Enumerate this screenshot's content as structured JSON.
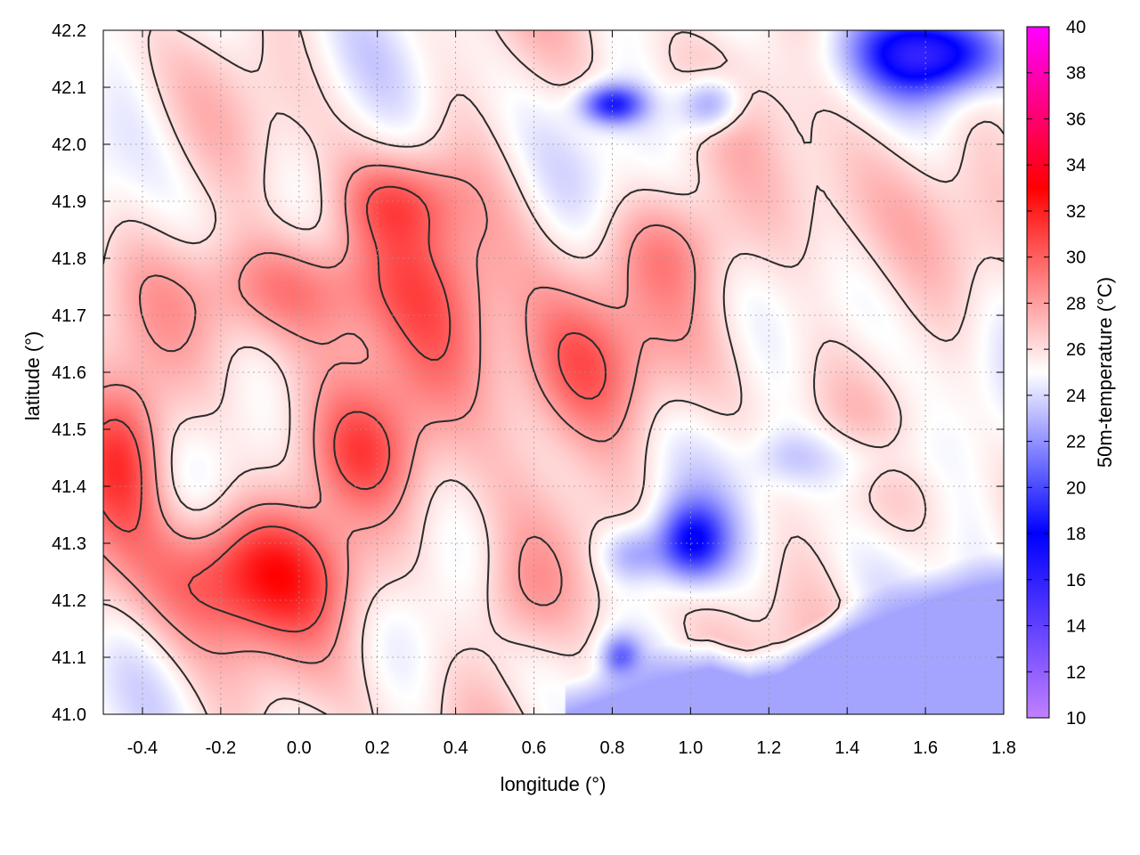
{
  "chart_data": {
    "type": "heatmap",
    "title": "",
    "xlabel": "longitude (°)",
    "ylabel": "latitude (°)",
    "colorbar_label": "50m-temperature (°C)",
    "xlim": [
      -0.5,
      1.8
    ],
    "ylim": [
      41.0,
      42.2
    ],
    "xticks": [
      -0.4,
      -0.2,
      0.0,
      0.2,
      0.4,
      0.6,
      0.8,
      1.0,
      1.2,
      1.4,
      1.6,
      1.8
    ],
    "xtick_labels": [
      "-0.4",
      "-0.2",
      "0.0",
      "0.2",
      "0.4",
      "0.6",
      "0.8",
      "1.0",
      "1.2",
      "1.4",
      "1.6",
      "1.8"
    ],
    "yticks": [
      41.0,
      41.1,
      41.2,
      41.3,
      41.4,
      41.5,
      41.6,
      41.7,
      41.8,
      41.9,
      42.0,
      42.1,
      42.2
    ],
    "ytick_labels": [
      "41.0",
      "41.1",
      "41.2",
      "41.3",
      "41.4",
      "41.5",
      "41.6",
      "41.7",
      "41.8",
      "41.9",
      "42.0",
      "42.1",
      "42.2"
    ],
    "colorbar_range": [
      10,
      40
    ],
    "colorbar_ticks": [
      10,
      12,
      14,
      16,
      18,
      20,
      22,
      24,
      26,
      28,
      30,
      32,
      34,
      36,
      38,
      40
    ],
    "colorbar_tick_labels": [
      "10",
      "12",
      "14",
      "16",
      "18",
      "20",
      "22",
      "24",
      "26",
      "28",
      "30",
      "32",
      "34",
      "36",
      "38",
      "40"
    ],
    "colormap": [
      {
        "value": 10,
        "color": "#c080ff"
      },
      {
        "value": 18,
        "color": "#0000ff"
      },
      {
        "value": 25,
        "color": "#ffffff"
      },
      {
        "value": 33,
        "color": "#ff0000"
      },
      {
        "value": 40,
        "color": "#ff00ff"
      }
    ],
    "grid": true,
    "sea_value": 22.5,
    "contour_levels": [
      26,
      28,
      30
    ],
    "field_features": [
      {
        "lon": -0.1,
        "lat": 41.25,
        "sx": 0.28,
        "sy": 0.12,
        "amp": 6.5
      },
      {
        "lon": -0.45,
        "lat": 41.45,
        "sx": 0.12,
        "sy": 0.14,
        "amp": 5.5
      },
      {
        "lon": 0.0,
        "lat": 41.75,
        "sx": 0.28,
        "sy": 0.1,
        "amp": 4.5
      },
      {
        "lon": 0.35,
        "lat": 41.65,
        "sx": 0.2,
        "sy": 0.18,
        "amp": 4.0
      },
      {
        "lon": 0.7,
        "lat": 41.6,
        "sx": 0.18,
        "sy": 0.14,
        "amp": 4.5
      },
      {
        "lon": 0.25,
        "lat": 41.9,
        "sx": 0.16,
        "sy": 0.08,
        "amp": 3.5
      },
      {
        "lon": 0.15,
        "lat": 41.45,
        "sx": 0.14,
        "sy": 0.1,
        "amp": 3.0
      },
      {
        "lon": 0.95,
        "lat": 41.82,
        "sx": 0.18,
        "sy": 0.1,
        "amp": 2.5
      },
      {
        "lon": 0.55,
        "lat": 41.2,
        "sx": 0.12,
        "sy": 0.1,
        "amp": 2.0
      },
      {
        "lon": 1.35,
        "lat": 41.85,
        "sx": 0.2,
        "sy": 0.15,
        "amp": 1.5
      },
      {
        "lon": 1.62,
        "lat": 42.16,
        "sx": 0.18,
        "sy": 0.07,
        "amp": -9.0
      },
      {
        "lon": 0.8,
        "lat": 42.07,
        "sx": 0.08,
        "sy": 0.035,
        "amp": -6.5
      },
      {
        "lon": 1.05,
        "lat": 42.07,
        "sx": 0.08,
        "sy": 0.05,
        "amp": -4.5
      },
      {
        "lon": 1.0,
        "lat": 41.3,
        "sx": 0.09,
        "sy": 0.07,
        "amp": -7.0
      },
      {
        "lon": 0.85,
        "lat": 41.28,
        "sx": 0.08,
        "sy": 0.05,
        "amp": -3.0
      },
      {
        "lon": 0.82,
        "lat": 41.1,
        "sx": 0.05,
        "sy": 0.04,
        "amp": -4.0
      },
      {
        "lon": 1.45,
        "lat": 41.45,
        "sx": 0.15,
        "sy": 0.06,
        "amp": -2.0
      },
      {
        "lon": 1.25,
        "lat": 41.45,
        "sx": 0.1,
        "sy": 0.05,
        "amp": -1.5
      }
    ],
    "coastline": [
      {
        "lon": 0.68,
        "lat": 41.0
      },
      {
        "lon": 0.8,
        "lat": 41.03
      },
      {
        "lon": 0.92,
        "lat": 41.06
      },
      {
        "lon": 1.05,
        "lat": 41.08
      },
      {
        "lon": 1.15,
        "lat": 41.06
      },
      {
        "lon": 1.23,
        "lat": 41.07
      },
      {
        "lon": 1.3,
        "lat": 41.1
      },
      {
        "lon": 1.4,
        "lat": 41.14
      },
      {
        "lon": 1.5,
        "lat": 41.17
      },
      {
        "lon": 1.62,
        "lat": 41.2
      },
      {
        "lon": 1.72,
        "lat": 41.22
      },
      {
        "lon": 1.8,
        "lat": 41.23
      }
    ]
  }
}
